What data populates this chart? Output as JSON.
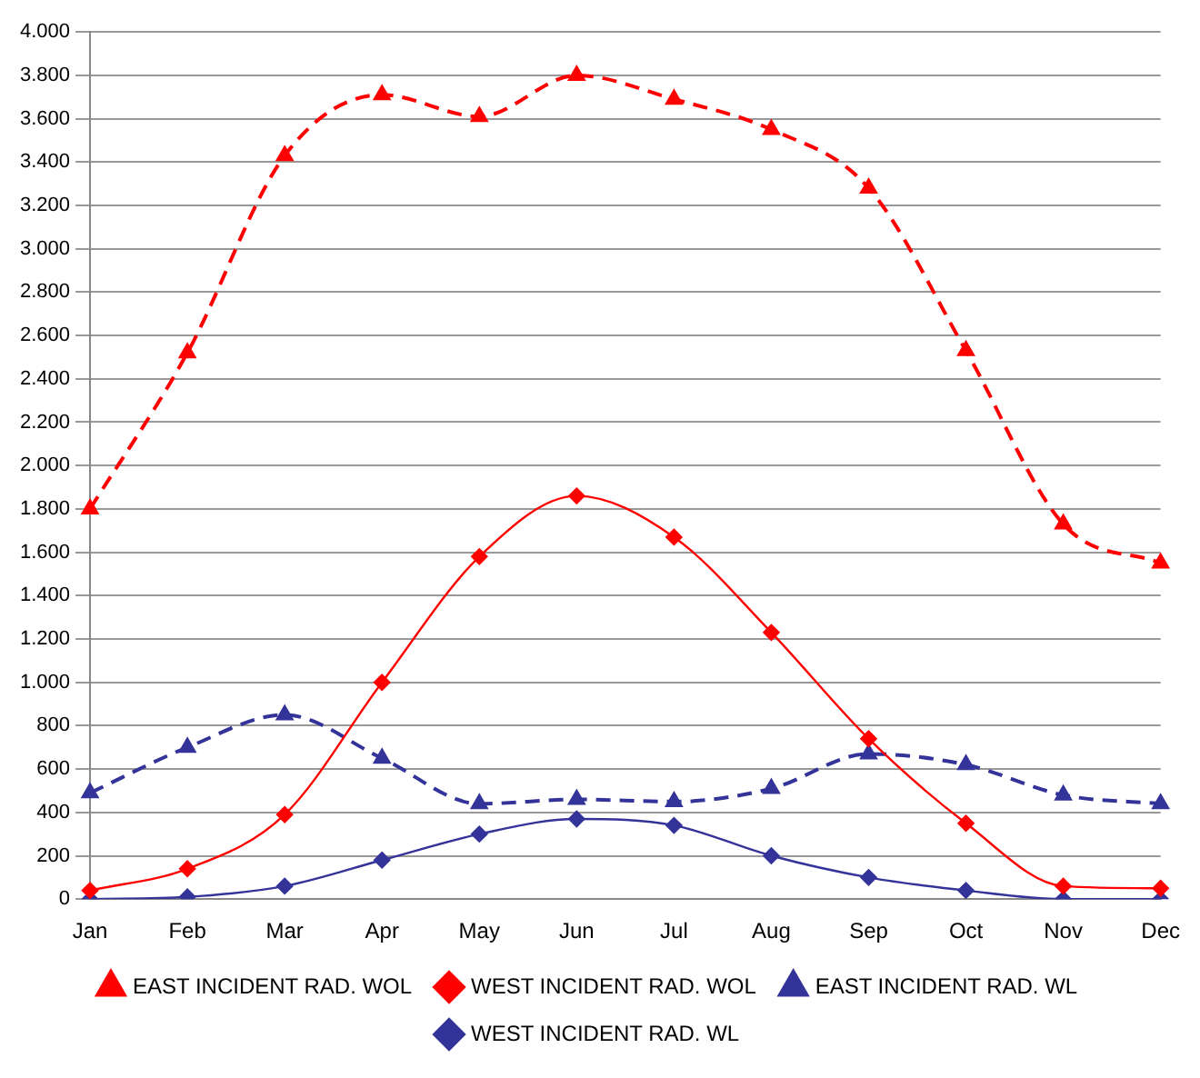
{
  "chart_data": {
    "type": "line",
    "categories": [
      "Jan",
      "Feb",
      "Mar",
      "Apr",
      "May",
      "Jun",
      "Jul",
      "Aug",
      "Sep",
      "Oct",
      "Nov",
      "Dec"
    ],
    "series": [
      {
        "name": "EAST INCIDENT RAD. WOL",
        "color": "#ff0000",
        "marker": "triangle",
        "line_style": "dashed",
        "values": [
          1800,
          2520,
          3430,
          3710,
          3610,
          3800,
          3690,
          3550,
          3280,
          2530,
          1730,
          1550
        ]
      },
      {
        "name": "WEST INCIDENT RAD. WOL",
        "color": "#ff0000",
        "marker": "diamond",
        "line_style": "solid",
        "values": [
          40,
          140,
          390,
          1000,
          1580,
          1860,
          1670,
          1230,
          740,
          350,
          60,
          50
        ]
      },
      {
        "name": "EAST INCIDENT RAD. WL",
        "color": "#333399",
        "marker": "triangle",
        "line_style": "dashed",
        "values": [
          490,
          700,
          850,
          650,
          440,
          460,
          450,
          510,
          670,
          620,
          480,
          440
        ]
      },
      {
        "name": "WEST INCIDENT RAD. WL",
        "color": "#333399",
        "marker": "diamond",
        "line_style": "solid",
        "values": [
          0,
          10,
          60,
          180,
          300,
          370,
          340,
          200,
          100,
          40,
          0,
          0
        ]
      }
    ],
    "ylim": [
      0,
      4000
    ],
    "yticks": [
      {
        "value": 0,
        "label": "0"
      },
      {
        "value": 200,
        "label": "200"
      },
      {
        "value": 400,
        "label": "400"
      },
      {
        "value": 600,
        "label": "600"
      },
      {
        "value": 800,
        "label": "800"
      },
      {
        "value": 1000,
        "label": "1.000"
      },
      {
        "value": 1200,
        "label": "1.200"
      },
      {
        "value": 1400,
        "label": "1.400"
      },
      {
        "value": 1600,
        "label": "1.600"
      },
      {
        "value": 1800,
        "label": "1.800"
      },
      {
        "value": 2000,
        "label": "2.000"
      },
      {
        "value": 2200,
        "label": "2.200"
      },
      {
        "value": 2400,
        "label": "2.400"
      },
      {
        "value": 2600,
        "label": "2.600"
      },
      {
        "value": 2800,
        "label": "2.800"
      },
      {
        "value": 3000,
        "label": "3.000"
      },
      {
        "value": 3200,
        "label": "3.200"
      },
      {
        "value": 3400,
        "label": "3.400"
      },
      {
        "value": 3600,
        "label": "3.600"
      },
      {
        "value": 3800,
        "label": "3.800"
      },
      {
        "value": 4000,
        "label": "4.000"
      }
    ],
    "grid": "y",
    "legend": "bottom"
  }
}
